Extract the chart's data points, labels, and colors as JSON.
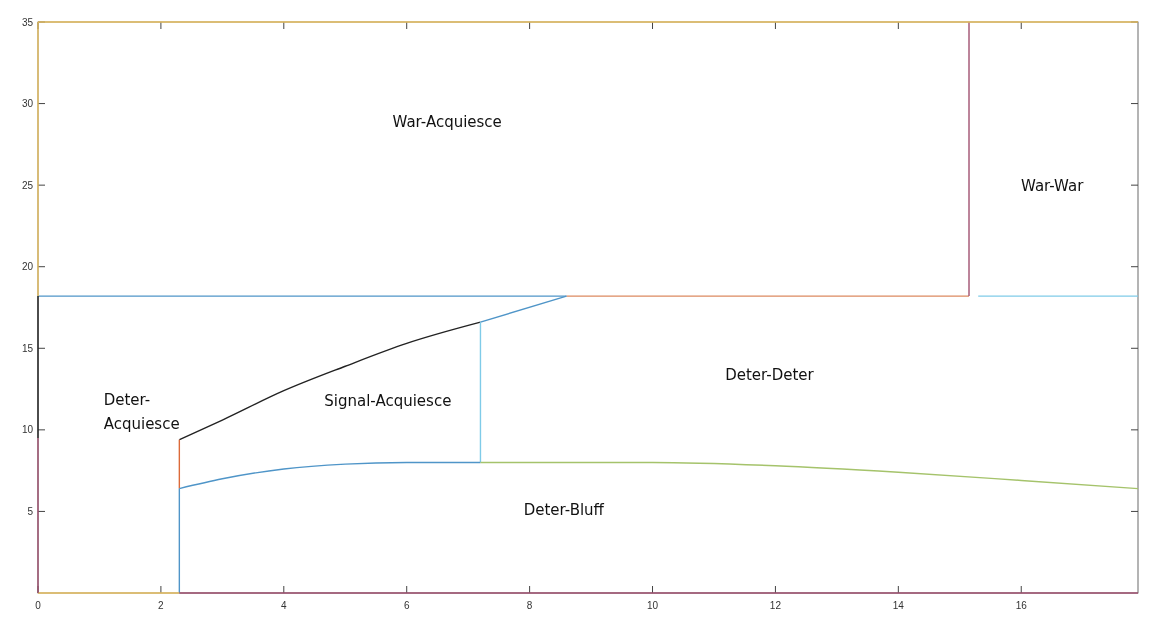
{
  "chart_data": {
    "type": "line",
    "xlim": [
      0,
      17.9
    ],
    "ylim": [
      0,
      35
    ],
    "xticks": [
      0,
      2,
      4,
      6,
      8,
      10,
      12,
      14,
      16
    ],
    "yticks": [
      5,
      10,
      15,
      20,
      25,
      30,
      35
    ],
    "grid": false,
    "marker": "none",
    "line_style": "solid",
    "series": [
      {
        "color": "#4f95c8",
        "x": [
          0,
          8.6
        ],
        "values": [
          18.2,
          18.2
        ]
      },
      {
        "color": "#dc8a60",
        "x": [
          8.6,
          15.15
        ],
        "values": [
          18.2,
          18.2
        ]
      },
      {
        "color": "#a05070",
        "x": [
          15.15,
          15.15
        ],
        "values": [
          18.2,
          35
        ]
      },
      {
        "color": "#7fcbe8",
        "x": [
          15.3,
          17.9
        ],
        "values": [
          18.2,
          18.2
        ]
      },
      {
        "color": "#222222",
        "x": [
          2.3,
          3,
          4,
          5,
          6,
          7.2
        ],
        "values": [
          9.4,
          10.6,
          12.4,
          13.9,
          15.3,
          16.6
        ]
      },
      {
        "color": "#4f95c8",
        "x": [
          7.2,
          8.6
        ],
        "values": [
          16.6,
          18.2
        ]
      },
      {
        "color": "#dc6a3a",
        "x": [
          2.3,
          2.3
        ],
        "values": [
          6.4,
          9.4
        ]
      },
      {
        "color": "#4f95c8",
        "x": [
          2.3,
          2.3
        ],
        "values": [
          0,
          6.4
        ]
      },
      {
        "color": "#7fcbe8",
        "x": [
          7.2,
          7.2
        ],
        "values": [
          8.0,
          16.6
        ]
      },
      {
        "color": "#4f95c8",
        "x": [
          2.3,
          3,
          4,
          5,
          6,
          7.2
        ],
        "values": [
          6.4,
          7.0,
          7.6,
          7.9,
          8.0,
          8.0
        ]
      },
      {
        "color": "#a5c36b",
        "x": [
          7.2,
          10,
          12,
          14,
          16,
          17.9
        ],
        "values": [
          8.0,
          8.0,
          7.8,
          7.4,
          6.9,
          6.4
        ]
      },
      {
        "color": "#e8c060",
        "x": [
          0,
          17.9
        ],
        "values": [
          35,
          35
        ]
      },
      {
        "color": "#e8c060",
        "x": [
          0,
          0
        ],
        "values": [
          18.2,
          35
        ]
      },
      {
        "color": "#e8c060",
        "x": [
          0,
          2.3
        ],
        "values": [
          0,
          0
        ]
      },
      {
        "color": "#a05070",
        "x": [
          2.3,
          17.9
        ],
        "values": [
          0,
          0
        ]
      },
      {
        "color": "#a05070",
        "x": [
          0,
          0
        ],
        "values": [
          0,
          9.5
        ]
      },
      {
        "color": "#222222",
        "x": [
          0,
          0
        ],
        "values": [
          9.5,
          18.2
        ]
      }
    ],
    "annotations": [
      "War-Acquiesce",
      "War-War",
      "Deter- Acquiesce",
      "Signal-Acquiesce",
      "Deter-Deter",
      "Deter-Bluff"
    ]
  }
}
